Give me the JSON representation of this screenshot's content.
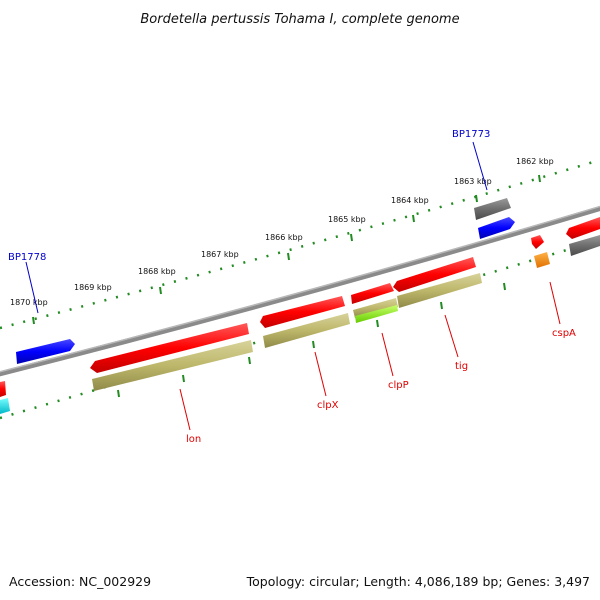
{
  "title": "Bordetella pertussis Tohama I, complete genome",
  "footer": {
    "accession": "Accession: NC_002929",
    "summary": "Topology: circular; Length: 4,086,189 bp; Genes: 3,497"
  },
  "colors": {
    "backbone": "#8a8a8a",
    "tick": "#228b22",
    "red_label": "#e00000",
    "blue_label": "#0000cc"
  },
  "scale_labels": [
    "1870 kbp",
    "1869 kbp",
    "1868 kbp",
    "1867 kbp",
    "1866 kbp",
    "1865 kbp",
    "1864 kbp",
    "1863 kbp",
    "1862 kbp"
  ],
  "gene_labels": {
    "bp1778": "BP1778",
    "bp1773": "BP1773",
    "lon": "lon",
    "clpx": "clpX",
    "clpp": "clpP",
    "tig": "tig",
    "cspa": "cspA"
  }
}
